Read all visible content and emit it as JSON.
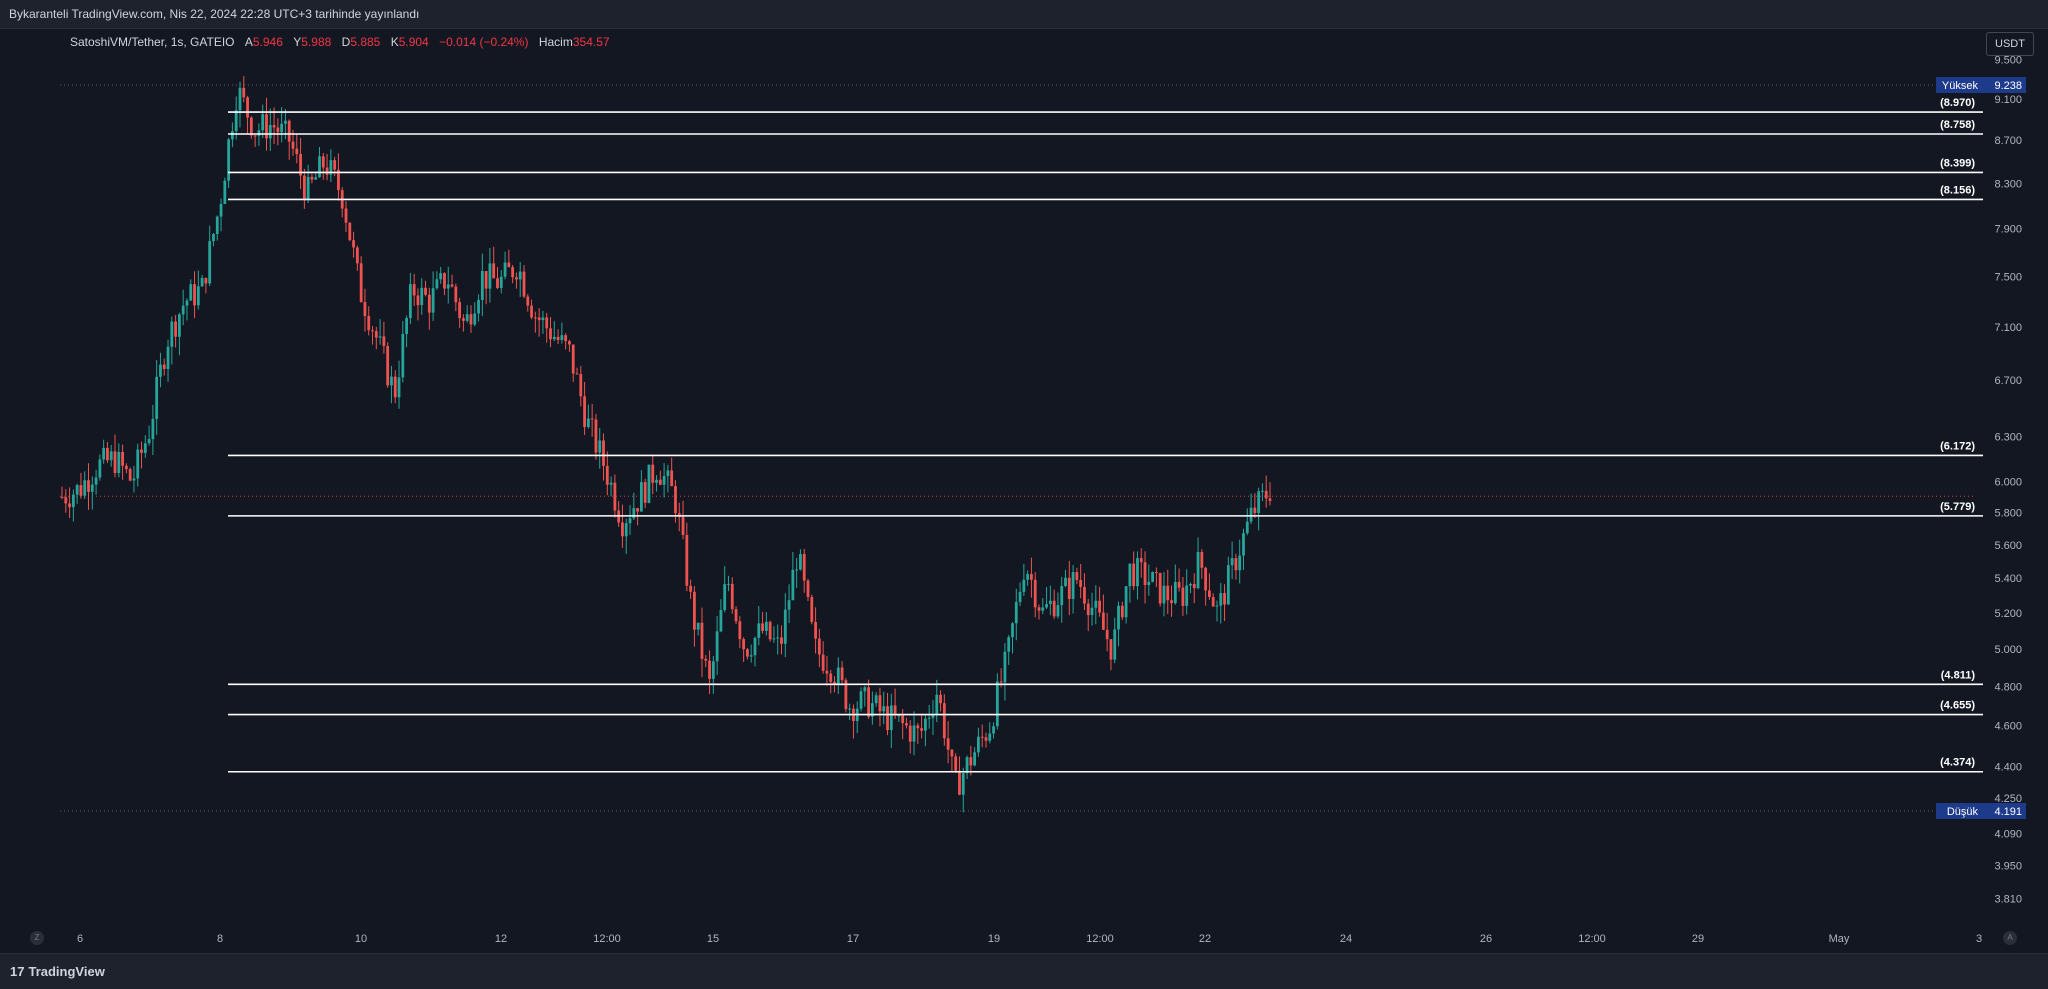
{
  "header": {
    "published_text": "Bykaranteli TradingView.com, Nis 22, 2024 22:28 UTC+3 tarihinde yayınlandı"
  },
  "legend": {
    "symbol": "SatoshiVM/Tether, 1s, GATEIO",
    "open_label": "A",
    "open": "5.946",
    "high_label": "Y",
    "high": "5.988",
    "low_label": "D",
    "low": "5.885",
    "close_label": "K",
    "close": "5.904",
    "change": "−0.014 (−0.24%)",
    "volume_label": "Hacim",
    "volume": "354.57"
  },
  "currency_button": "USDT",
  "footer": {
    "brand": "TradingView",
    "brand_mark": "17"
  },
  "corner_buttons": {
    "left": "Z",
    "right": "A"
  },
  "colors": {
    "background": "#131722",
    "up": "#26a69a",
    "down": "#ef5350",
    "level_line": "#ffffff",
    "axis_text": "#b2b5be",
    "marker_bg": "#1e3a8a"
  },
  "chart_data": {
    "type": "candlestick",
    "title": "SatoshiVM/Tether, 1s, GATEIO",
    "xlabel": "",
    "ylabel": "",
    "ylim": [
      3.74,
      9.62
    ],
    "y_scale": "log",
    "y_ticks": [
      "9.500",
      "9.100",
      "8.700",
      "8.300",
      "7.900",
      "7.500",
      "7.100",
      "6.700",
      "6.300",
      "6.000",
      "5.800",
      "5.600",
      "5.400",
      "5.200",
      "5.000",
      "4.800",
      "4.600",
      "4.400",
      "4.250",
      "4.090",
      "3.950",
      "3.810"
    ],
    "x_ticks": [
      "6",
      "8",
      "10",
      "12",
      "12:00",
      "15",
      "17",
      "19",
      "12:00",
      "22",
      "24",
      "26",
      "12:00",
      "29",
      "May",
      "3"
    ],
    "session_high": {
      "label": "Yüksek",
      "value": "9.238"
    },
    "session_low": {
      "label": "Düşük",
      "value": "4.191"
    },
    "last_close": 5.904,
    "levels": [
      {
        "value": 8.97,
        "label": "(8.970)"
      },
      {
        "value": 8.758,
        "label": "(8.758)"
      },
      {
        "value": 8.399,
        "label": "(8.399)"
      },
      {
        "value": 8.156,
        "label": "(8.156)"
      },
      {
        "value": 6.172,
        "label": "(6.172)"
      },
      {
        "value": 5.779,
        "label": "(5.779)"
      },
      {
        "value": 4.811,
        "label": "(4.811)"
      },
      {
        "value": 4.655,
        "label": "(4.655)"
      },
      {
        "value": 4.374,
        "label": "(4.374)"
      }
    ],
    "close_path": [
      5.9,
      5.95,
      6.1,
      6.15,
      6.0,
      6.35,
      7.0,
      7.3,
      7.4,
      8.1,
      9.2,
      8.8,
      8.85,
      8.7,
      8.2,
      8.5,
      8.2,
      7.4,
      7.0,
      6.6,
      7.4,
      7.3,
      7.5,
      7.1,
      7.5,
      7.45,
      7.6,
      7.2,
      7.05,
      6.9,
      6.4,
      6.1,
      5.75,
      5.9,
      6.1,
      5.9,
      5.2,
      4.8,
      5.4,
      5.0,
      5.1,
      5.0,
      5.55,
      5.0,
      4.9,
      4.7,
      4.72,
      4.65,
      4.6,
      4.55,
      4.78,
      4.3,
      4.45,
      4.6,
      4.95,
      5.5,
      5.2,
      5.3,
      5.4,
      5.2,
      5.0,
      5.45,
      5.4,
      5.3,
      5.3,
      5.5,
      5.2,
      5.5,
      5.8,
      5.95
    ]
  }
}
